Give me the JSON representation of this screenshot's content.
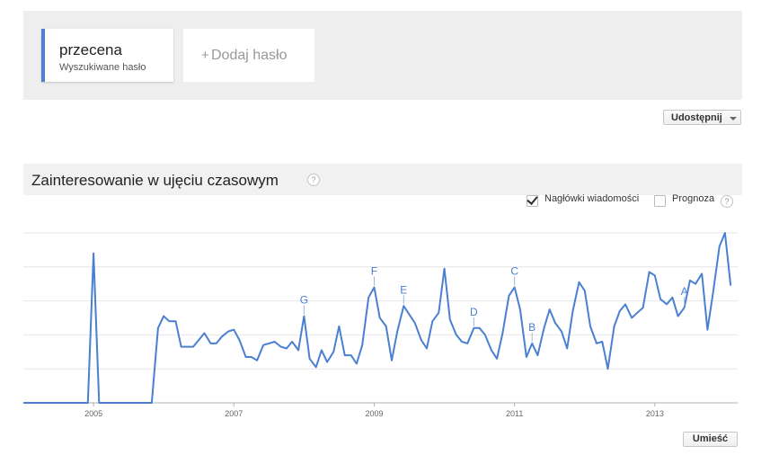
{
  "search_terms": [
    {
      "term": "przecena",
      "subtitle": "Wyszukiwane hasło",
      "color": "#4a7fd1"
    }
  ],
  "add_term": {
    "plus": "+",
    "label": "Dodaj hasło"
  },
  "share_button": {
    "label": "Udostępnij"
  },
  "section": {
    "title": "Zainteresowanie w ujęciu czasowym",
    "help": "?"
  },
  "options": {
    "news_headlines": {
      "label": "Nagłówki wiadomości",
      "checked": true
    },
    "forecast": {
      "label": "Prognoza",
      "checked": false
    },
    "help": "?"
  },
  "embed_button": {
    "label": "Umieść"
  },
  "colors": {
    "line": "#4a7fd1",
    "grid": "#e6e6e6",
    "axis": "#b0b0b0"
  },
  "chart_data": {
    "type": "line",
    "xlim": [
      2004.0,
      2014.18
    ],
    "ylim": [
      0,
      100
    ],
    "x_ticks": [
      {
        "value": 2005,
        "label": "2005"
      },
      {
        "value": 2007,
        "label": "2007"
      },
      {
        "value": 2009,
        "label": "2009"
      },
      {
        "value": 2011,
        "label": "2011"
      },
      {
        "value": 2013,
        "label": "2013"
      }
    ],
    "y_grid": [
      20,
      40,
      60,
      80,
      100
    ],
    "series": [
      {
        "values": [
          [
            2004.0,
            0
          ],
          [
            2004.92,
            0
          ],
          [
            2005.0,
            88
          ],
          [
            2005.08,
            0
          ],
          [
            2005.83,
            0
          ],
          [
            2005.92,
            44
          ],
          [
            2006.0,
            51
          ],
          [
            2006.08,
            48
          ],
          [
            2006.17,
            48
          ],
          [
            2006.25,
            33
          ],
          [
            2006.33,
            33
          ],
          [
            2006.42,
            33
          ],
          [
            2006.5,
            37
          ],
          [
            2006.58,
            41
          ],
          [
            2006.67,
            35
          ],
          [
            2006.75,
            35
          ],
          [
            2006.83,
            39
          ],
          [
            2006.92,
            42
          ],
          [
            2007.0,
            43
          ],
          [
            2007.08,
            37
          ],
          [
            2007.17,
            27
          ],
          [
            2007.25,
            27
          ],
          [
            2007.33,
            25
          ],
          [
            2007.42,
            34
          ],
          [
            2007.5,
            35
          ],
          [
            2007.58,
            36
          ],
          [
            2007.67,
            33
          ],
          [
            2007.75,
            32
          ],
          [
            2007.83,
            36
          ],
          [
            2007.92,
            31
          ],
          [
            2008.0,
            51
          ],
          [
            2008.08,
            26
          ],
          [
            2008.17,
            21
          ],
          [
            2008.25,
            31
          ],
          [
            2008.33,
            24
          ],
          [
            2008.42,
            30
          ],
          [
            2008.5,
            45
          ],
          [
            2008.58,
            28
          ],
          [
            2008.67,
            28
          ],
          [
            2008.75,
            23
          ],
          [
            2008.83,
            34
          ],
          [
            2008.92,
            62
          ],
          [
            2009.0,
            68
          ],
          [
            2009.08,
            50
          ],
          [
            2009.17,
            45
          ],
          [
            2009.25,
            25
          ],
          [
            2009.33,
            42
          ],
          [
            2009.42,
            57
          ],
          [
            2009.5,
            52
          ],
          [
            2009.58,
            47
          ],
          [
            2009.67,
            37
          ],
          [
            2009.75,
            32
          ],
          [
            2009.83,
            48
          ],
          [
            2009.92,
            53
          ],
          [
            2010.0,
            79
          ],
          [
            2010.08,
            49
          ],
          [
            2010.17,
            40
          ],
          [
            2010.25,
            36
          ],
          [
            2010.33,
            35
          ],
          [
            2010.42,
            44
          ],
          [
            2010.5,
            44
          ],
          [
            2010.58,
            40
          ],
          [
            2010.67,
            31
          ],
          [
            2010.75,
            26
          ],
          [
            2010.83,
            41
          ],
          [
            2010.92,
            63
          ],
          [
            2011.0,
            68
          ],
          [
            2011.08,
            55
          ],
          [
            2011.17,
            27
          ],
          [
            2011.25,
            35
          ],
          [
            2011.33,
            28
          ],
          [
            2011.42,
            44
          ],
          [
            2011.5,
            55
          ],
          [
            2011.58,
            47
          ],
          [
            2011.67,
            42
          ],
          [
            2011.75,
            32
          ],
          [
            2011.83,
            54
          ],
          [
            2011.92,
            71
          ],
          [
            2012.0,
            66
          ],
          [
            2012.08,
            45
          ],
          [
            2012.17,
            35
          ],
          [
            2012.25,
            36
          ],
          [
            2012.33,
            20
          ],
          [
            2012.42,
            45
          ],
          [
            2012.5,
            54
          ],
          [
            2012.58,
            58
          ],
          [
            2012.67,
            50
          ],
          [
            2012.75,
            53
          ],
          [
            2012.83,
            56
          ],
          [
            2012.92,
            77
          ],
          [
            2013.0,
            75
          ],
          [
            2013.08,
            61
          ],
          [
            2013.17,
            58
          ],
          [
            2013.25,
            62
          ],
          [
            2013.33,
            51
          ],
          [
            2013.42,
            56
          ],
          [
            2013.5,
            72
          ],
          [
            2013.58,
            70
          ],
          [
            2013.67,
            76
          ],
          [
            2013.75,
            43
          ],
          [
            2013.83,
            65
          ],
          [
            2013.92,
            92
          ],
          [
            2014.0,
            100
          ],
          [
            2014.08,
            69
          ]
        ]
      }
    ],
    "annotations": [
      {
        "label": "G",
        "x": 2008.0,
        "y": 51
      },
      {
        "label": "F",
        "x": 2009.0,
        "y": 68
      },
      {
        "label": "E",
        "x": 2009.42,
        "y": 57
      },
      {
        "label": "D",
        "x": 2010.42,
        "y": 44
      },
      {
        "label": "C",
        "x": 2011.0,
        "y": 68
      },
      {
        "label": "B",
        "x": 2011.25,
        "y": 35
      },
      {
        "label": "A",
        "x": 2013.42,
        "y": 56
      }
    ],
    "grid": true,
    "legend": "none"
  }
}
